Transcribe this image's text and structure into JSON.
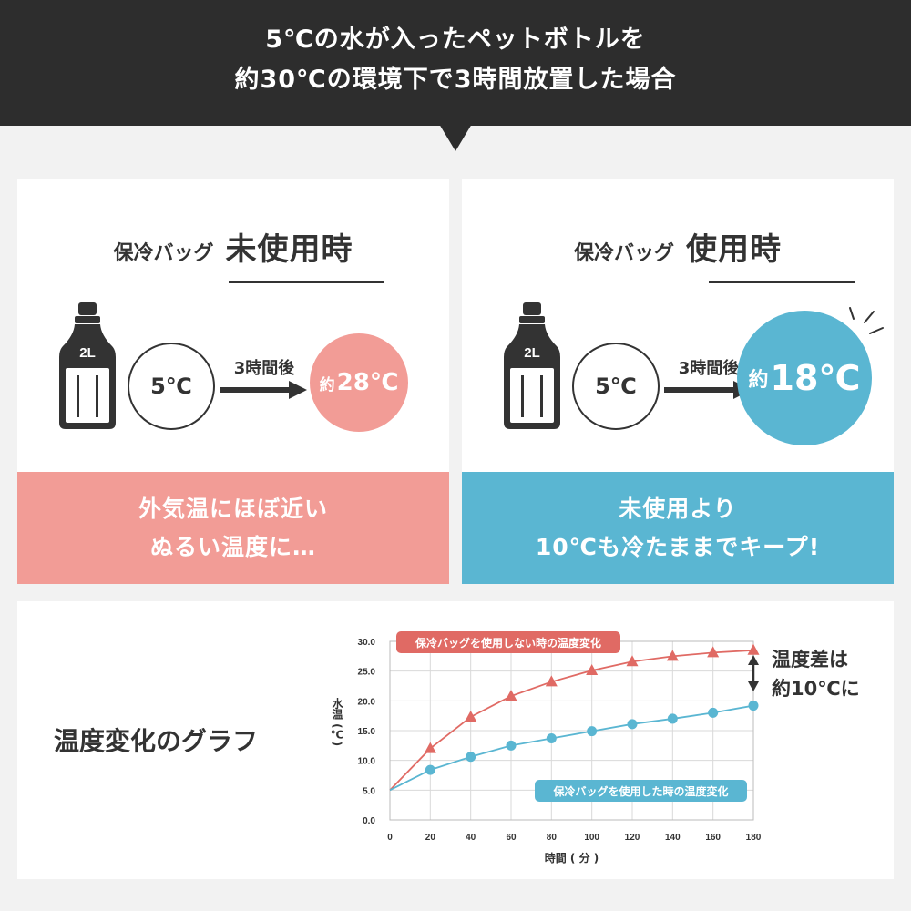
{
  "header": {
    "line1": "5℃の水が入ったペットボトルを",
    "line2": "約30℃の環境下で3時間放置した場合"
  },
  "left_panel": {
    "title_small": "保冷バッグ",
    "title_big": "未使用時",
    "bottle_label": "2L",
    "start_temp": "5℃",
    "arrow_label": "3時間後",
    "end_prefix": "約",
    "end_temp": "28℃",
    "footer_line1": "外気温にほぼ近い",
    "footer_line2": "ぬるい温度に…",
    "color": "#f29c96"
  },
  "right_panel": {
    "title_small": "保冷バッグ",
    "title_big": "使用時",
    "bottle_label": "2L",
    "start_temp": "5℃",
    "arrow_label": "3時間後",
    "end_prefix": "約",
    "end_temp": "18℃",
    "footer_line1": "未使用より",
    "footer_line2": "10℃も冷たままでキープ!",
    "color": "#5ab6d2"
  },
  "graph_section": {
    "label": "温度変化のグラフ",
    "diff_line1": "温度差は",
    "diff_line2": "約10℃に"
  },
  "chart_data": {
    "type": "line",
    "xlabel": "時間 ( 分 )",
    "ylabel": "水温 (℃)",
    "x": [
      0,
      20,
      40,
      60,
      80,
      100,
      120,
      140,
      160,
      180
    ],
    "xlim": [
      0,
      180
    ],
    "ylim": [
      0,
      30
    ],
    "x_ticks": [
      "0",
      "20",
      "40",
      "60",
      "80",
      "100",
      "120",
      "140",
      "160",
      "180"
    ],
    "y_ticks": [
      "0.0",
      "5.0",
      "10.0",
      "15.0",
      "20.0",
      "25.0",
      "30.0"
    ],
    "grid": true,
    "series": [
      {
        "name": "保冷バッグを使用しない時の温度変化",
        "marker": "triangle",
        "color": "#e06a64",
        "values": [
          5.0,
          12.0,
          17.3,
          20.8,
          23.2,
          25.1,
          26.6,
          27.5,
          28.1,
          28.5
        ]
      },
      {
        "name": "保冷バッグを使用した時の温度変化",
        "marker": "circle",
        "color": "#5ab6d2",
        "values": [
          5.0,
          8.4,
          10.6,
          12.5,
          13.7,
          14.9,
          16.1,
          17.0,
          18.0,
          19.2
        ]
      }
    ]
  }
}
